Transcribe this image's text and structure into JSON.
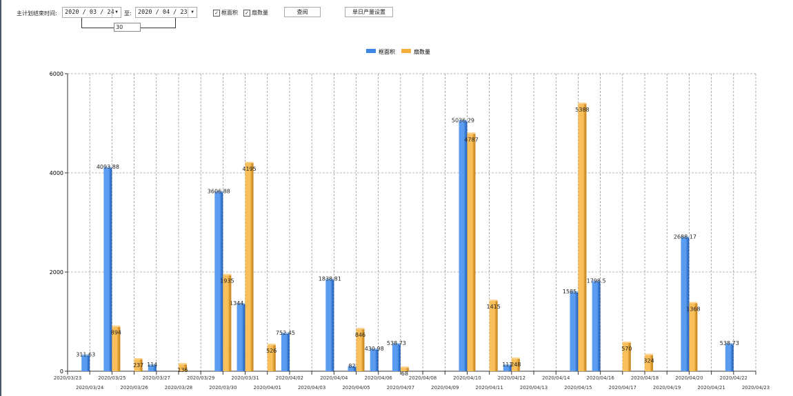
{
  "filters": {
    "label": "主计划结束时间:",
    "start_date": "2020 / 03 / 24",
    "to_label": "至:",
    "end_date": "2020 / 04 / 23",
    "days": "30",
    "check_area": {
      "label": "框面积",
      "checked": true
    },
    "check_count": {
      "label": "扇数量",
      "checked": true
    },
    "query_button": "查阅",
    "settings_button": "单日产量设置"
  },
  "chart_data": {
    "type": "bar",
    "legend_position": "top",
    "grid": true,
    "ylim": [
      0,
      6000
    ],
    "yticks": [
      0,
      2000,
      4000,
      6000
    ],
    "colors": [
      "#3d86e6",
      "#f5ae3c"
    ],
    "categories": [
      "2020/03/23",
      "2020/03/24",
      "2020/03/25",
      "2020/03/26",
      "2020/03/27",
      "2020/03/28",
      "2020/03/29",
      "2020/03/30",
      "2020/03/31",
      "2020/04/01",
      "2020/04/02",
      "2020/04/03",
      "2020/04/04",
      "2020/04/05",
      "2020/04/06",
      "2020/04/07",
      "2020/04/08",
      "2020/04/09",
      "2020/04/10",
      "2020/04/11",
      "2020/04/12",
      "2020/04/13",
      "2020/04/14",
      "2020/04/15",
      "2020/04/16",
      "2020/04/17",
      "2020/04/18",
      "2020/04/19",
      "2020/04/20",
      "2020/04/21",
      "2020/04/22",
      "2020/04/23"
    ],
    "series": [
      {
        "name": "框面积",
        "values": [
          null,
          311.63,
          4093.88,
          null,
          114,
          null,
          null,
          3606.88,
          1344.95,
          null,
          752.45,
          null,
          1838.81,
          82,
          430.98,
          538.73,
          null,
          null,
          5036.29,
          null,
          111,
          null,
          null,
          1585.96,
          1798.5,
          null,
          null,
          null,
          2688.17,
          null,
          538.73,
          null
        ]
      },
      {
        "name": "扇数量",
        "values": [
          null,
          null,
          894,
          237,
          null,
          136,
          null,
          1935,
          4195,
          526,
          null,
          null,
          null,
          846,
          null,
          68,
          null,
          null,
          4787,
          1415,
          248,
          null,
          null,
          5388,
          null,
          570,
          324,
          null,
          1368,
          null,
          null,
          null
        ]
      }
    ]
  }
}
